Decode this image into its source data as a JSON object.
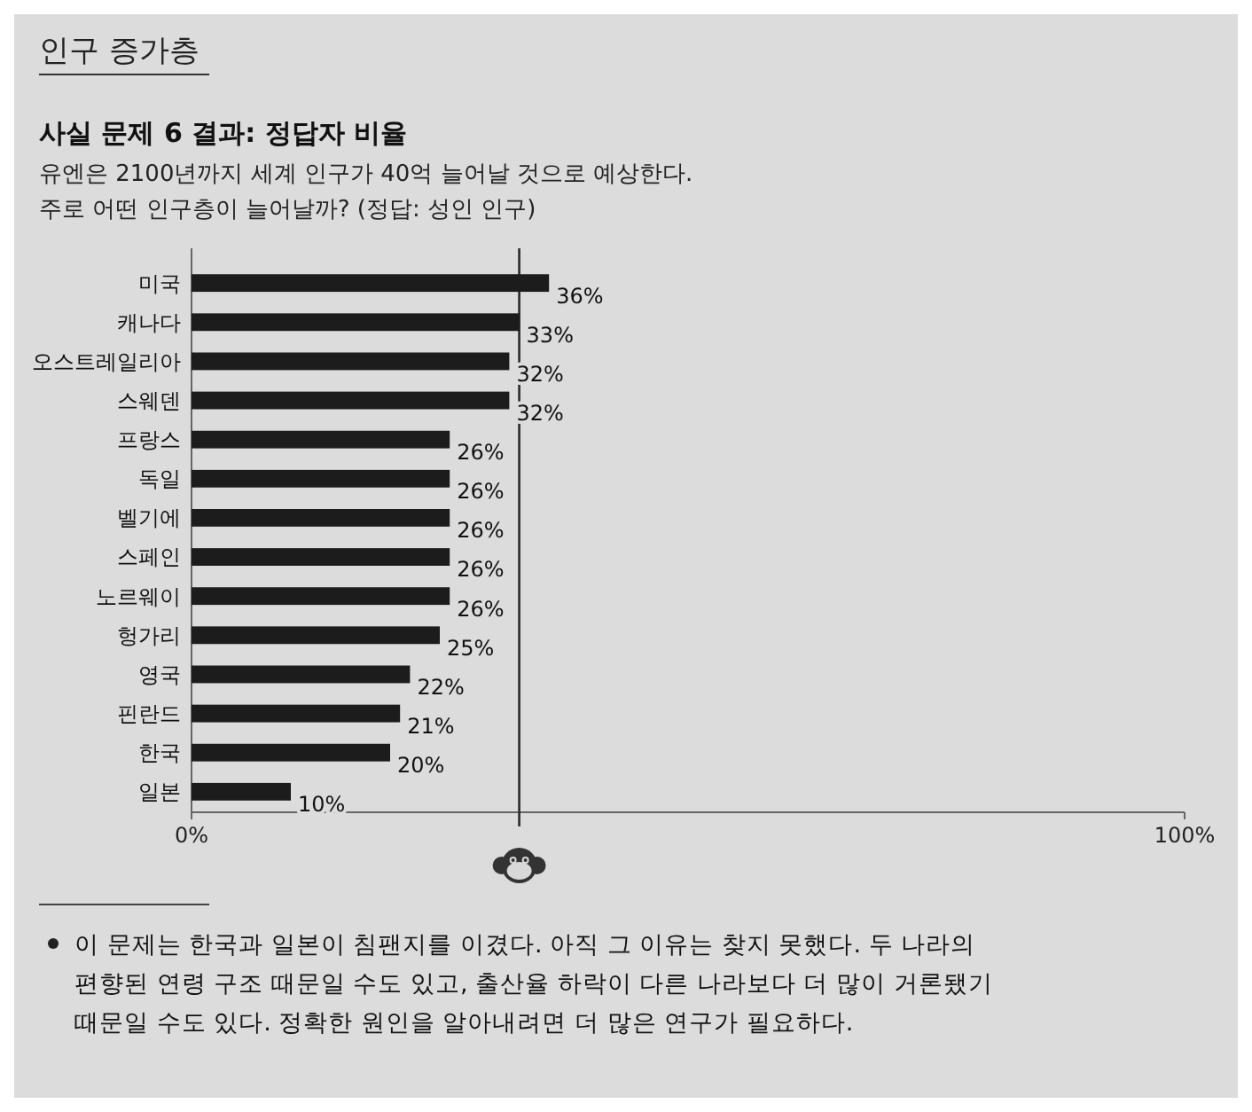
{
  "chart_data": {
    "type": "bar",
    "orientation": "horizontal",
    "title": "사실 문제 6 결과: 정답자 비율",
    "subtitle": "유엔은 2100년까지 세계 인구가 40억 늘어날 것으로 예상한다.\n주로 어떤 인구층이 늘어날까? (정답: 성인 인구)",
    "categories": [
      "미국",
      "캐나다",
      "오스트레일리아",
      "스웨덴",
      "프랑스",
      "독일",
      "벨기에",
      "스페인",
      "노르웨이",
      "헝가리",
      "영국",
      "핀란드",
      "한국",
      "일본"
    ],
    "values": [
      36,
      33,
      32,
      32,
      26,
      26,
      26,
      26,
      26,
      25,
      22,
      21,
      20,
      10
    ],
    "value_labels": [
      "36%",
      "33%",
      "32%",
      "32%",
      "26%",
      "26%",
      "26%",
      "26%",
      "26%",
      "25%",
      "22%",
      "21%",
      "20%",
      "10%"
    ],
    "color": "#1c1c1c",
    "xlim": [
      0,
      100
    ],
    "xticks": [
      {
        "value": 0,
        "label": "0%"
      },
      {
        "value": 100,
        "label": "100%"
      }
    ],
    "ref_lines": [
      {
        "axis": "x",
        "value": 33,
        "color": "#2a2a2a"
      }
    ],
    "grid": false,
    "annotations": [
      "인구 증가층",
      "이 문제는 한국과 일본이 침팬지를 이겼다. 아직 그 이유는 찾지 못했다. 두 나라의 편향된 연령 구조 때문일 수도 있고, 출산율 하락이 다른 나라보다 더 많이 거론됐기 때문일 수도 있다. 정확한 원인을 알아내려면 더 많은 연구가 필요하다."
    ]
  }
}
